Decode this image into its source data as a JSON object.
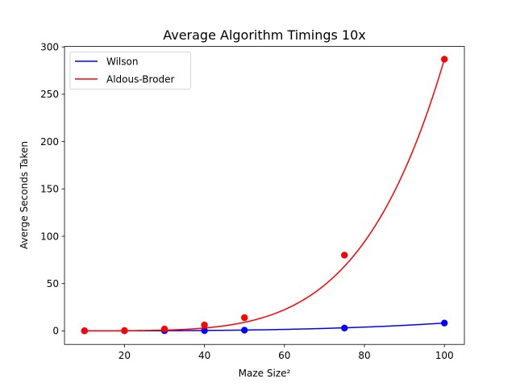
{
  "chart_data": {
    "type": "line",
    "title": "Average Algorithm Timings 10x",
    "xlabel": "Maze Size²",
    "ylabel": "Averge Seconds Taken",
    "xlim": [
      5,
      105
    ],
    "ylim": [
      -14.3,
      300.5
    ],
    "xticks": [
      20,
      40,
      60,
      80,
      100
    ],
    "yticks": [
      0,
      50,
      100,
      150,
      200,
      250,
      300
    ],
    "grid": false,
    "legend_position": "top-left",
    "series": [
      {
        "name": "Wilson",
        "color": "#0000ff",
        "points": [
          [
            10,
            0.05
          ],
          [
            20,
            0.1
          ],
          [
            30,
            0.2
          ],
          [
            40,
            0.3
          ],
          [
            50,
            0.7
          ],
          [
            75,
            3.0
          ],
          [
            100,
            8.3
          ]
        ],
        "curve_exponent": 3.3
      },
      {
        "name": "Aldous-Broder",
        "color": "#ff0000",
        "points": [
          [
            10,
            0.1
          ],
          [
            20,
            0.4
          ],
          [
            30,
            2.0
          ],
          [
            40,
            6.2
          ],
          [
            50,
            14.0
          ],
          [
            75,
            80.0
          ],
          [
            100,
            287.0
          ]
        ],
        "curve_exponent": 5.0
      }
    ]
  }
}
